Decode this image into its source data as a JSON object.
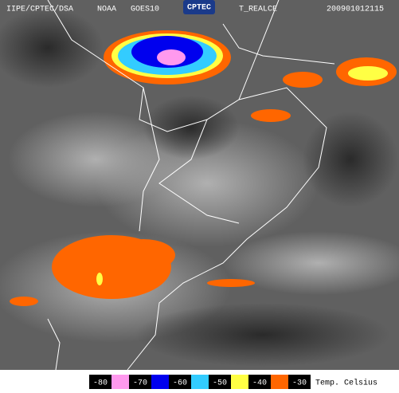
{
  "header": {
    "institution": "IIPE/CPTEC/DSA",
    "agency": "NOAA",
    "satellite": "GOES10",
    "logo": "CPTEC",
    "product": "T_REALCE",
    "timestamp": "200901012115"
  },
  "legend": {
    "values": [
      -80,
      -70,
      -60,
      -50,
      -40,
      -30
    ],
    "colors": [
      "#ff99ee",
      "#0000ee",
      "#33ccff",
      "#ffff44",
      "#ff6600"
    ],
    "unit": "Temp. Celsius"
  }
}
